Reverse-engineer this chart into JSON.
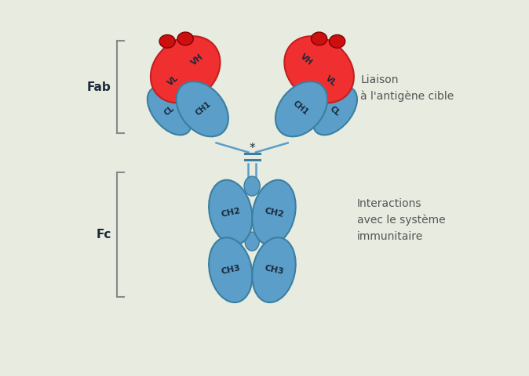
{
  "bg_color": "#e8ebe0",
  "top_bar_color": "#8b1a1a",
  "blue_domain_color": "#5b9ec9",
  "blue_domain_edge": "#3a7fa0",
  "red_domain_color": "#f03030",
  "red_domain_edge": "#c02020",
  "cdr_circle_color": "#cc1010",
  "cdr_circle_edge": "#800000",
  "text_color_dark": "#1a2a3a",
  "text_color_label": "#555555",
  "fab_label": "Fab",
  "fc_label": "Fc",
  "right_top_label": "Liaison\nà l'antigène cible",
  "right_bottom_label": "Interactions\navec le système\nimmunitaire",
  "bracket_color": "#888888",
  "hinge_color": "#3a7fa0"
}
